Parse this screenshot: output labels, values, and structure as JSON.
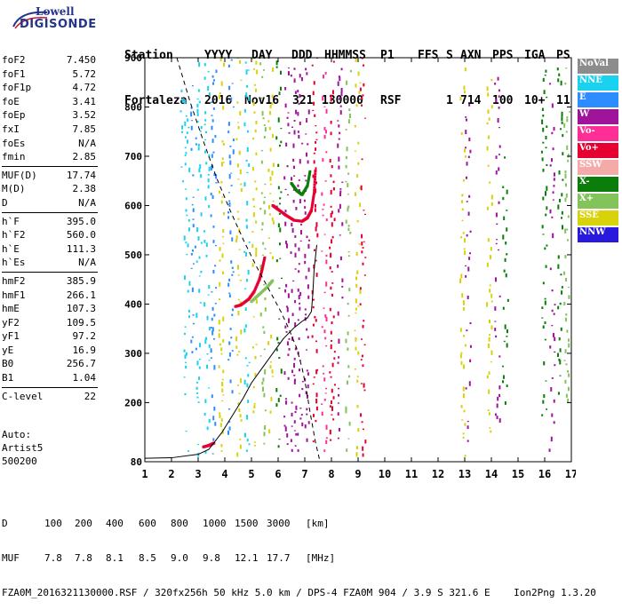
{
  "logo": {
    "line1": "Lowell",
    "line2": "DIGISONDE"
  },
  "header": {
    "labels": [
      "Station",
      "YYYY",
      "DAY",
      "DDD",
      "HHMMSS",
      "P1",
      "FFS",
      "S",
      "AXN",
      "PPS",
      "IGA",
      "PS"
    ],
    "values": [
      "Fortaleza",
      "2016",
      "Nov16",
      "321",
      "130000",
      "RSF",
      "1",
      "714",
      "100",
      "10+",
      "11"
    ]
  },
  "params": {
    "group1": [
      {
        "name": "foF2",
        "value": "7.450"
      },
      {
        "name": "foF1",
        "value": "5.72"
      },
      {
        "name": "foF1p",
        "value": "4.72"
      },
      {
        "name": "foE",
        "value": "3.41"
      },
      {
        "name": "foEp",
        "value": "3.52"
      },
      {
        "name": "fxI",
        "value": "7.85"
      },
      {
        "name": "foEs",
        "value": "N/A"
      },
      {
        "name": "fmin",
        "value": "2.85"
      }
    ],
    "group2": [
      {
        "name": "MUF(D)",
        "value": "17.74"
      },
      {
        "name": "M(D)",
        "value": "2.38"
      },
      {
        "name": "D",
        "value": "N/A"
      }
    ],
    "group3": [
      {
        "name": "h`F",
        "value": "395.0"
      },
      {
        "name": "h`F2",
        "value": "560.0"
      },
      {
        "name": "h`E",
        "value": "111.3"
      },
      {
        "name": "h`Es",
        "value": "N/A"
      }
    ],
    "group4": [
      {
        "name": "hmF2",
        "value": "385.9"
      },
      {
        "name": "hmF1",
        "value": "266.1"
      },
      {
        "name": "hmE",
        "value": "107.3"
      },
      {
        "name": "yF2",
        "value": "109.5"
      },
      {
        "name": "yF1",
        "value": "97.2"
      },
      {
        "name": "yE",
        "value": "16.9"
      },
      {
        "name": "B0",
        "value": "256.7"
      },
      {
        "name": "B1",
        "value": "1.04"
      }
    ],
    "group5": [
      {
        "name": "C-level",
        "value": "22"
      }
    ]
  },
  "autoscale": {
    "line1": "Auto:",
    "line2": "Artist5",
    "line3": "500200"
  },
  "legend": [
    {
      "label": "NoVal",
      "color": "#8c8c8c"
    },
    {
      "label": "NNE",
      "color": "#19d2f0"
    },
    {
      "label": "E",
      "color": "#2d8cff"
    },
    {
      "label": "W",
      "color": "#a0149b"
    },
    {
      "label": "Vo-",
      "color": "#ff2d96"
    },
    {
      "label": "Vo+",
      "color": "#e60032"
    },
    {
      "label": "SSW",
      "color": "#f5aaaa"
    },
    {
      "label": "X-",
      "color": "#0a7d0a"
    },
    {
      "label": "X+",
      "color": "#82c35a"
    },
    {
      "label": "SSE",
      "color": "#d7d20a"
    },
    {
      "label": "NNW",
      "color": "#2819dc"
    }
  ],
  "bottom": {
    "d_label": "D",
    "d_values": [
      "100",
      "200",
      "400",
      "600",
      "800",
      "1000",
      "1500",
      "3000",
      "[km]"
    ],
    "muf_label": "MUF",
    "muf_values": [
      "7.8",
      "7.8",
      "8.1",
      "8.5",
      "9.0",
      "9.8",
      "12.1",
      "17.7",
      "[MHz]"
    ],
    "footer": "FZA0M_2016321130000.RSF / 320fx256h 50 kHz 5.0 km / DPS-4 FZA0M 904 / 3.9 S 321.6 E    Ion2Png 1.3.20"
  },
  "chart_data": {
    "type": "scatter",
    "title": "",
    "xlabel": "",
    "ylabel": "",
    "xlim": [
      1,
      17
    ],
    "ylim": [
      80,
      900
    ],
    "x_ticks": [
      1,
      2,
      3,
      4,
      5,
      6,
      7,
      8,
      9,
      10,
      11,
      12,
      13,
      14,
      15,
      16,
      17
    ],
    "y_ticks": [
      80,
      200,
      300,
      400,
      500,
      600,
      700,
      800,
      900
    ],
    "traces": {
      "o_trace_lower": [
        [
          4.4,
          395
        ],
        [
          4.6,
          398
        ],
        [
          4.9,
          410
        ],
        [
          5.1,
          425
        ],
        [
          5.3,
          450
        ],
        [
          5.4,
          470
        ],
        [
          5.5,
          495
        ]
      ],
      "o_trace_upper": [
        [
          5.8,
          600
        ],
        [
          6.0,
          592
        ],
        [
          6.3,
          580
        ],
        [
          6.6,
          570
        ],
        [
          6.9,
          568
        ],
        [
          7.1,
          575
        ],
        [
          7.25,
          590
        ],
        [
          7.35,
          625
        ],
        [
          7.4,
          672
        ]
      ],
      "x_trace_lower": [
        [
          5.0,
          405
        ],
        [
          5.3,
          420
        ],
        [
          5.6,
          435
        ],
        [
          5.8,
          448
        ]
      ],
      "x_trace_upper": [
        [
          6.5,
          645
        ],
        [
          6.7,
          630
        ],
        [
          6.9,
          622
        ],
        [
          7.1,
          640
        ],
        [
          7.2,
          670
        ]
      ],
      "e_trace": [
        [
          3.2,
          110
        ],
        [
          3.4,
          113
        ],
        [
          3.6,
          118
        ]
      ]
    },
    "profile_line": [
      [
        1,
        87
      ],
      [
        2,
        88
      ],
      [
        3,
        95
      ],
      [
        3.4,
        105
      ],
      [
        3.9,
        140
      ],
      [
        4.3,
        175
      ],
      [
        4.7,
        210
      ],
      [
        5.0,
        240
      ],
      [
        5.4,
        270
      ],
      [
        5.8,
        300
      ],
      [
        6.2,
        330
      ],
      [
        6.6,
        352
      ],
      [
        6.9,
        365
      ],
      [
        7.1,
        372
      ],
      [
        7.25,
        385
      ],
      [
        7.3,
        420
      ],
      [
        7.35,
        470
      ],
      [
        7.45,
        520
      ]
    ],
    "dashed_line": [
      [
        2.2,
        900
      ],
      [
        2.7,
        810
      ],
      [
        3.2,
        730
      ],
      [
        3.7,
        655
      ],
      [
        4.2,
        590
      ],
      [
        4.7,
        530
      ],
      [
        5.2,
        475
      ],
      [
        5.7,
        425
      ],
      [
        6.1,
        385
      ],
      [
        6.4,
        350
      ],
      [
        6.7,
        310
      ],
      [
        6.9,
        270
      ],
      [
        7.05,
        230
      ],
      [
        7.2,
        180
      ],
      [
        7.4,
        120
      ],
      [
        7.55,
        85
      ]
    ],
    "echo_bands": [
      {
        "x": 2.4,
        "ymin": 640,
        "ymax": 840,
        "color": "#19d2f0"
      },
      {
        "x": 2.55,
        "ymin": 100,
        "ymax": 820,
        "color": "#19d2f0"
      },
      {
        "x": 2.8,
        "ymin": 300,
        "ymax": 880,
        "color": "#2d8cff"
      },
      {
        "x": 3.0,
        "ymin": 90,
        "ymax": 900,
        "color": "#19d2f0"
      },
      {
        "x": 3.3,
        "ymin": 90,
        "ymax": 900,
        "color": "#19d2f0"
      },
      {
        "x": 3.55,
        "ymin": 95,
        "ymax": 900,
        "color": "#2d8cff"
      },
      {
        "x": 3.85,
        "ymin": 100,
        "ymax": 900,
        "color": "#d7d20a"
      },
      {
        "x": 4.2,
        "ymin": 100,
        "ymax": 900,
        "color": "#2d8cff"
      },
      {
        "x": 4.5,
        "ymin": 90,
        "ymax": 900,
        "color": "#d7d20a"
      },
      {
        "x": 4.8,
        "ymin": 100,
        "ymax": 900,
        "color": "#19d2f0"
      },
      {
        "x": 5.1,
        "ymin": 90,
        "ymax": 900,
        "color": "#d7d20a"
      },
      {
        "x": 5.4,
        "ymin": 100,
        "ymax": 900,
        "color": "#82c35a"
      },
      {
        "x": 5.7,
        "ymin": 90,
        "ymax": 900,
        "color": "#d7d20a"
      },
      {
        "x": 6.0,
        "ymin": 100,
        "ymax": 900,
        "color": "#0a7d0a"
      },
      {
        "x": 6.3,
        "ymin": 100,
        "ymax": 880,
        "color": "#a0149b"
      },
      {
        "x": 6.55,
        "ymin": 100,
        "ymax": 880,
        "color": "#a0149b"
      },
      {
        "x": 6.8,
        "ymin": 100,
        "ymax": 870,
        "color": "#a0149b"
      },
      {
        "x": 7.05,
        "ymin": 120,
        "ymax": 880,
        "color": "#a0149b"
      },
      {
        "x": 7.35,
        "ymin": 100,
        "ymax": 900,
        "color": "#e60032"
      },
      {
        "x": 7.7,
        "ymin": 100,
        "ymax": 900,
        "color": "#ff2d96"
      },
      {
        "x": 8.0,
        "ymin": 90,
        "ymax": 900,
        "color": "#e60032"
      },
      {
        "x": 8.3,
        "ymin": 100,
        "ymax": 880,
        "color": "#a0149b"
      },
      {
        "x": 8.6,
        "ymin": 100,
        "ymax": 880,
        "color": "#82c35a"
      },
      {
        "x": 8.95,
        "ymin": 90,
        "ymax": 900,
        "color": "#d7d20a"
      },
      {
        "x": 9.15,
        "ymin": 90,
        "ymax": 900,
        "color": "#e60032"
      },
      {
        "x": 12.9,
        "ymin": 90,
        "ymax": 880,
        "color": "#d7d20a"
      },
      {
        "x": 13.1,
        "ymin": 120,
        "ymax": 820,
        "color": "#a0149b"
      },
      {
        "x": 13.9,
        "ymin": 90,
        "ymax": 880,
        "color": "#d7d20a"
      },
      {
        "x": 14.2,
        "ymin": 150,
        "ymax": 880,
        "color": "#a0149b"
      },
      {
        "x": 14.5,
        "ymin": 180,
        "ymax": 700,
        "color": "#0a7d0a"
      },
      {
        "x": 15.95,
        "ymin": 150,
        "ymax": 880,
        "color": "#0a7d0a"
      },
      {
        "x": 16.25,
        "ymin": 100,
        "ymax": 880,
        "color": "#a0149b"
      },
      {
        "x": 16.55,
        "ymin": 200,
        "ymax": 880,
        "color": "#0a7d0a"
      },
      {
        "x": 16.8,
        "ymin": 200,
        "ymax": 880,
        "color": "#82c35a"
      }
    ]
  }
}
